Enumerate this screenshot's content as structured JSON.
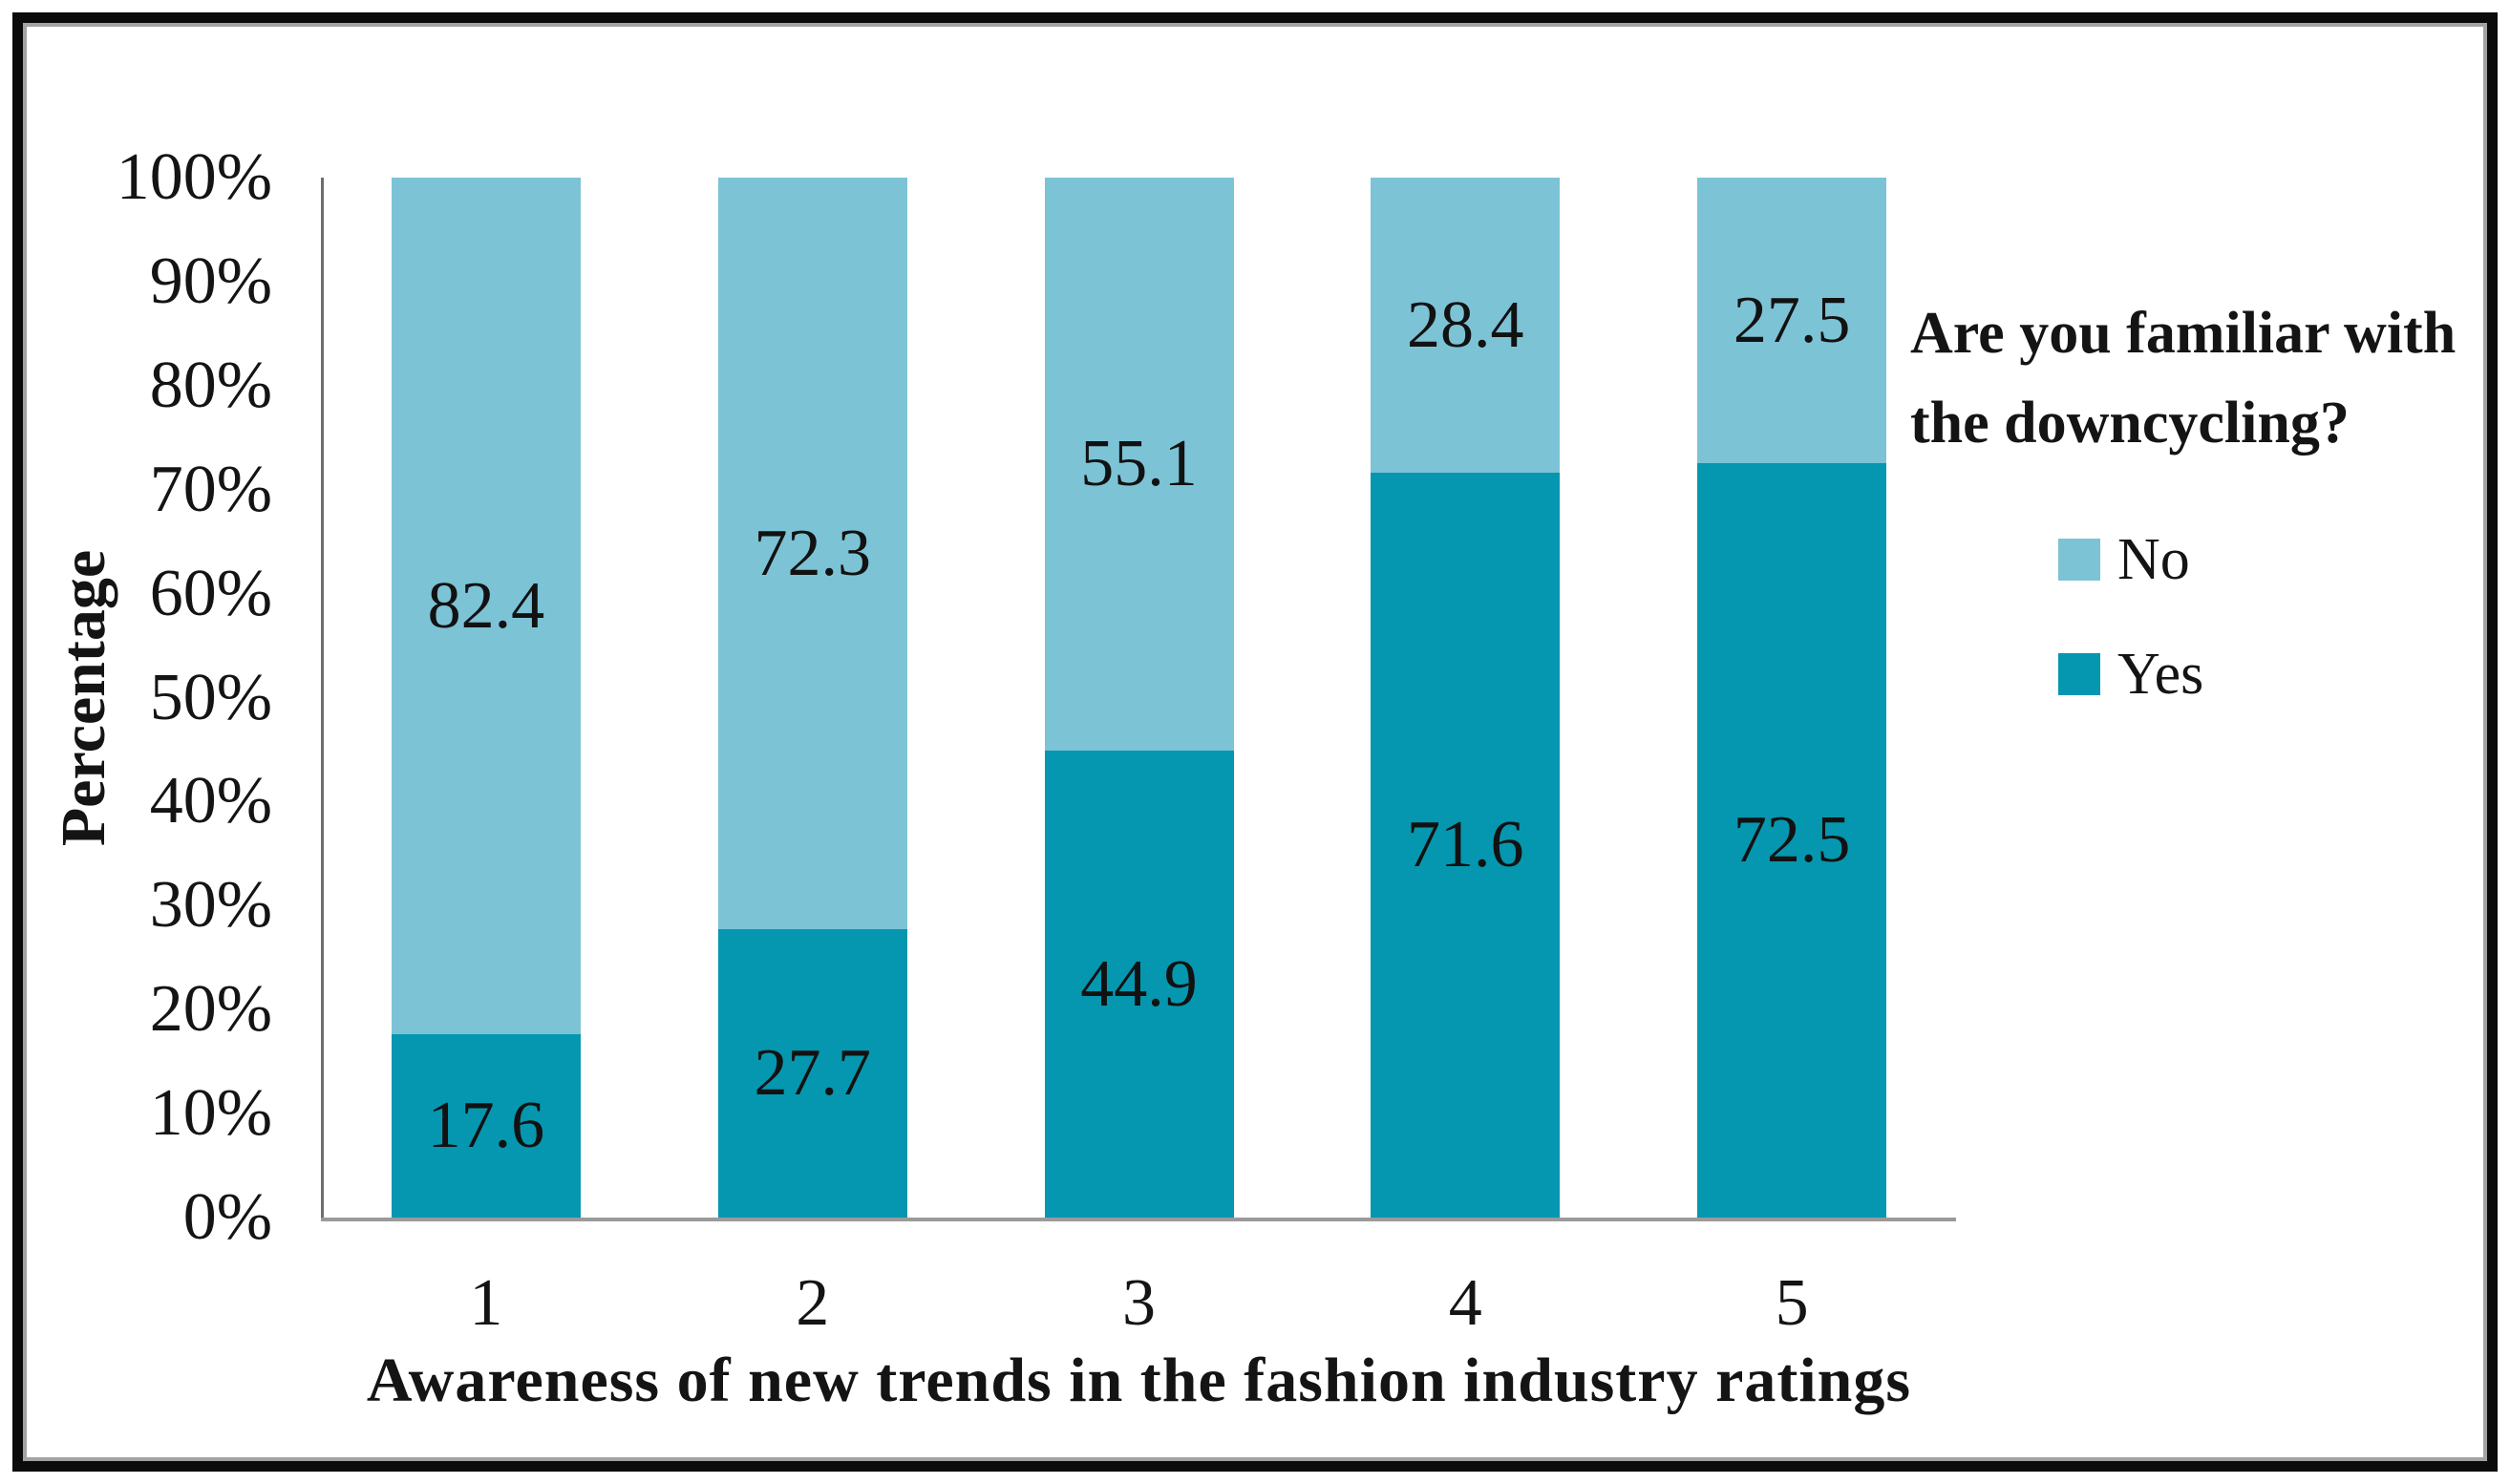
{
  "chart_data": {
    "type": "bar",
    "variant": "100%-stacked-column",
    "categories": [
      "1",
      "2",
      "3",
      "4",
      "5"
    ],
    "series": [
      {
        "name": "No",
        "color": "#7cc3d6",
        "values": [
          82.4,
          72.3,
          55.1,
          28.4,
          27.5
        ]
      },
      {
        "name": "Yes",
        "color": "#0597af",
        "values": [
          17.6,
          27.7,
          44.9,
          71.6,
          72.5
        ]
      }
    ],
    "stack_order_bottom_to_top": [
      "Yes",
      "No"
    ],
    "data_labels": true,
    "xlabel": "Awareness of new trends in the fashion industry ratings",
    "ylabel": "Percentage",
    "y_ticks": [
      "100%",
      "90%",
      "80%",
      "70%",
      "60%",
      "50%",
      "40%",
      "30%",
      "20%",
      "10%",
      "0%"
    ],
    "ylim": [
      0,
      100
    ],
    "grid": false,
    "legend": {
      "title": "Are you familiar with the downcycling?",
      "position": "right",
      "items": [
        "No",
        "Yes"
      ]
    }
  }
}
